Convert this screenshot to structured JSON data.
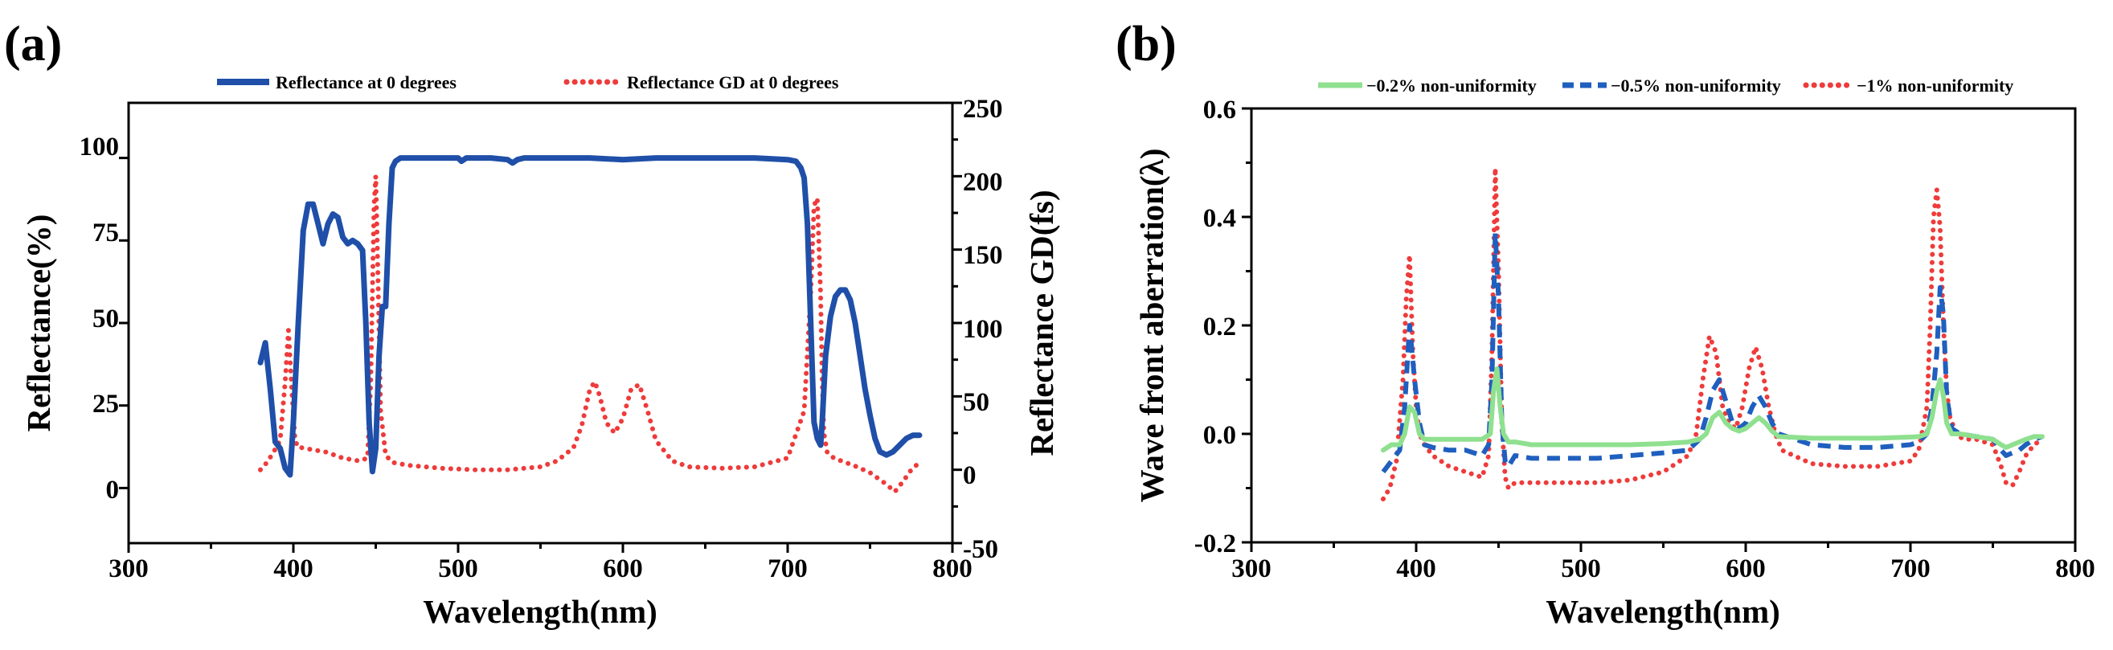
{
  "chart_data": [
    {
      "type": "line",
      "panel_label": "(a)",
      "xlabel": "Wavelength(nm)",
      "ylabel": "Reflectance(%)",
      "y2label": "Reflectance GD(fs)",
      "xlim": [
        300,
        800
      ],
      "ylim": [
        -16.7,
        116.7
      ],
      "y2lim": [
        -50,
        250
      ],
      "xticks": [
        "300",
        "400",
        "500",
        "600",
        "700",
        "800"
      ],
      "yticks": [
        "0",
        "25",
        "50",
        "75",
        "100"
      ],
      "y2ticks": [
        "-50",
        "0",
        "50",
        "100",
        "150",
        "200",
        "250"
      ],
      "legend_position": "top",
      "colors": {
        "blue": "#1f4fa8",
        "red": "#ee3b3b"
      },
      "series": [
        {
          "name": "Reflectance at 0 degrees",
          "axis": "left",
          "style": "solid",
          "color": "#1f4fa8",
          "x": [
            380,
            383,
            386,
            389,
            392,
            395,
            398,
            400,
            403,
            406,
            409,
            412,
            415,
            418,
            421,
            424,
            427,
            430,
            433,
            436,
            439,
            442,
            444,
            446,
            448,
            450,
            452,
            454,
            456,
            458,
            460,
            462,
            465,
            470,
            480,
            490,
            500,
            502,
            505,
            520,
            530,
            533,
            536,
            540,
            560,
            580,
            600,
            620,
            640,
            660,
            680,
            700,
            705,
            708,
            710,
            712,
            714,
            716,
            718,
            720,
            721,
            723,
            726,
            729,
            732,
            735,
            738,
            741,
            744,
            747,
            750,
            753,
            756,
            760,
            764,
            768,
            772,
            776,
            780
          ],
          "y": [
            38,
            44,
            30,
            14,
            12,
            6,
            4,
            20,
            50,
            78,
            86,
            86,
            80,
            74,
            80,
            83,
            82,
            76,
            74,
            75,
            74,
            72,
            50,
            20,
            5,
            12,
            40,
            55,
            55,
            80,
            97,
            99,
            100,
            100,
            100,
            100,
            100,
            99,
            100,
            100,
            99.5,
            98.5,
            99.5,
            100,
            100,
            100,
            99.5,
            100,
            100,
            100,
            100,
            99.5,
            99,
            97,
            94,
            80,
            50,
            20,
            15,
            13,
            20,
            40,
            52,
            58,
            60,
            60,
            57,
            50,
            40,
            30,
            22,
            15,
            11,
            10,
            11,
            13,
            15,
            16,
            16
          ]
        },
        {
          "name": "Reflectance GD at 0 degrees",
          "axis": "right",
          "style": "dotted",
          "color": "#ee3b3b",
          "x": [
            380,
            384,
            388,
            392,
            395,
            397,
            399,
            401,
            403,
            406,
            410,
            420,
            430,
            440,
            445,
            447,
            449,
            450,
            451,
            453,
            456,
            460,
            470,
            490,
            510,
            530,
            550,
            560,
            570,
            575,
            580,
            583,
            586,
            590,
            595,
            600,
            605,
            610,
            615,
            620,
            630,
            640,
            660,
            680,
            700,
            710,
            714,
            716,
            718,
            720,
            721,
            722,
            724,
            728,
            735,
            740,
            750,
            760,
            765,
            770,
            775,
            780
          ],
          "y": [
            0,
            5,
            12,
            20,
            60,
            95,
            55,
            20,
            15,
            15,
            14,
            12,
            8,
            6,
            8,
            60,
            180,
            200,
            150,
            40,
            10,
            5,
            3,
            1,
            0,
            0,
            2,
            6,
            15,
            30,
            55,
            60,
            50,
            32,
            25,
            35,
            55,
            58,
            40,
            20,
            6,
            2,
            1,
            2,
            8,
            40,
            120,
            180,
            185,
            120,
            60,
            25,
            12,
            8,
            5,
            3,
            -2,
            -10,
            -15,
            -8,
            0,
            5
          ]
        }
      ]
    },
    {
      "type": "line",
      "panel_label": "(b)",
      "xlabel": "Wavelength(nm)",
      "ylabel": "Wave front aberration(λ)",
      "xlim": [
        300,
        800
      ],
      "ylim": [
        -0.2,
        0.6
      ],
      "xticks": [
        "300",
        "400",
        "500",
        "600",
        "700",
        "800"
      ],
      "yticks": [
        "-0.2",
        "0.0",
        "0.2",
        "0.4",
        "0.6"
      ],
      "legend_position": "top",
      "series": [
        {
          "name": "−0.2% non-uniformity",
          "style": "solid",
          "color": "#8fe08f",
          "x": [
            380,
            385,
            390,
            393,
            396,
            399,
            402,
            405,
            410,
            420,
            430,
            440,
            445,
            447,
            449,
            451,
            453,
            456,
            460,
            470,
            490,
            510,
            530,
            550,
            565,
            572,
            576,
            580,
            584,
            588,
            592,
            596,
            600,
            604,
            608,
            612,
            616,
            620,
            640,
            660,
            680,
            700,
            705,
            710,
            713,
            716,
            718,
            720,
            722,
            725,
            730,
            740,
            750,
            755,
            758,
            762,
            766,
            770,
            775,
            780
          ],
          "y": [
            -0.03,
            -0.02,
            -0.02,
            0.0,
            0.05,
            0.04,
            0.0,
            -0.01,
            -0.01,
            -0.01,
            -0.01,
            -0.01,
            0.0,
            0.08,
            0.12,
            0.05,
            0.0,
            -0.015,
            -0.015,
            -0.02,
            -0.02,
            -0.02,
            -0.02,
            -0.018,
            -0.015,
            -0.01,
            0.0,
            0.03,
            0.04,
            0.02,
            0.01,
            0.005,
            0.01,
            0.02,
            0.03,
            0.02,
            0.005,
            -0.005,
            -0.008,
            -0.008,
            -0.008,
            -0.006,
            -0.005,
            0.0,
            0.03,
            0.08,
            0.1,
            0.07,
            0.02,
            0.0,
            0.0,
            -0.005,
            -0.01,
            -0.02,
            -0.025,
            -0.02,
            -0.015,
            -0.01,
            -0.005,
            -0.005
          ]
        },
        {
          "name": "−0.5% non-uniformity",
          "style": "dashed",
          "color": "#1f5fbf",
          "x": [
            380,
            385,
            390,
            393,
            396,
            399,
            402,
            405,
            410,
            420,
            430,
            440,
            444,
            446,
            448,
            450,
            452,
            454,
            456,
            460,
            470,
            490,
            510,
            530,
            550,
            565,
            572,
            576,
            580,
            584,
            588,
            592,
            596,
            600,
            604,
            608,
            612,
            616,
            620,
            640,
            660,
            680,
            700,
            705,
            710,
            713,
            716,
            718,
            720,
            722,
            725,
            730,
            740,
            750,
            755,
            758,
            762,
            766,
            770,
            775,
            780
          ],
          "y": [
            -0.07,
            -0.05,
            -0.03,
            0.05,
            0.2,
            0.1,
            0.02,
            -0.02,
            -0.025,
            -0.03,
            -0.03,
            -0.04,
            -0.02,
            0.1,
            0.37,
            0.25,
            0.02,
            -0.05,
            -0.06,
            -0.04,
            -0.045,
            -0.045,
            -0.045,
            -0.04,
            -0.035,
            -0.03,
            -0.01,
            0.03,
            0.08,
            0.1,
            0.06,
            0.02,
            0.01,
            0.02,
            0.05,
            0.07,
            0.05,
            0.02,
            0.0,
            -0.02,
            -0.025,
            -0.025,
            -0.02,
            -0.015,
            0.0,
            0.05,
            0.15,
            0.27,
            0.22,
            0.07,
            0.01,
            0.0,
            -0.005,
            -0.01,
            -0.03,
            -0.04,
            -0.035,
            -0.03,
            -0.02,
            -0.01,
            -0.005
          ]
        },
        {
          "name": "−1% non-uniformity",
          "style": "dotted",
          "color": "#ee3b3b",
          "x": [
            380,
            384,
            388,
            392,
            394,
            396,
            398,
            400,
            402,
            405,
            410,
            420,
            430,
            440,
            444,
            446,
            448,
            450,
            452,
            454,
            456,
            460,
            470,
            490,
            510,
            530,
            550,
            565,
            570,
            574,
            578,
            582,
            586,
            590,
            594,
            598,
            602,
            606,
            610,
            614,
            618,
            622,
            640,
            660,
            680,
            700,
            705,
            710,
            712,
            714,
            716,
            718,
            720,
            722,
            724,
            728,
            732,
            740,
            750,
            755,
            758,
            762,
            766,
            770,
            775,
            780
          ],
          "y": [
            -0.12,
            -0.1,
            -0.05,
            0.1,
            0.25,
            0.33,
            0.15,
            0.05,
            0.0,
            -0.02,
            -0.04,
            -0.06,
            -0.07,
            -0.08,
            -0.04,
            0.15,
            0.49,
            0.3,
            0.02,
            -0.08,
            -0.1,
            -0.09,
            -0.09,
            -0.09,
            -0.09,
            -0.085,
            -0.07,
            -0.04,
            0.0,
            0.1,
            0.18,
            0.15,
            0.05,
            0.02,
            0.01,
            0.05,
            0.12,
            0.16,
            0.12,
            0.05,
            0.0,
            -0.03,
            -0.055,
            -0.06,
            -0.06,
            -0.05,
            -0.03,
            0.05,
            0.2,
            0.4,
            0.45,
            0.38,
            0.2,
            0.08,
            0.03,
            0.0,
            -0.01,
            -0.01,
            -0.02,
            -0.06,
            -0.09,
            -0.095,
            -0.07,
            -0.04,
            -0.02,
            -0.01
          ]
        }
      ]
    }
  ]
}
